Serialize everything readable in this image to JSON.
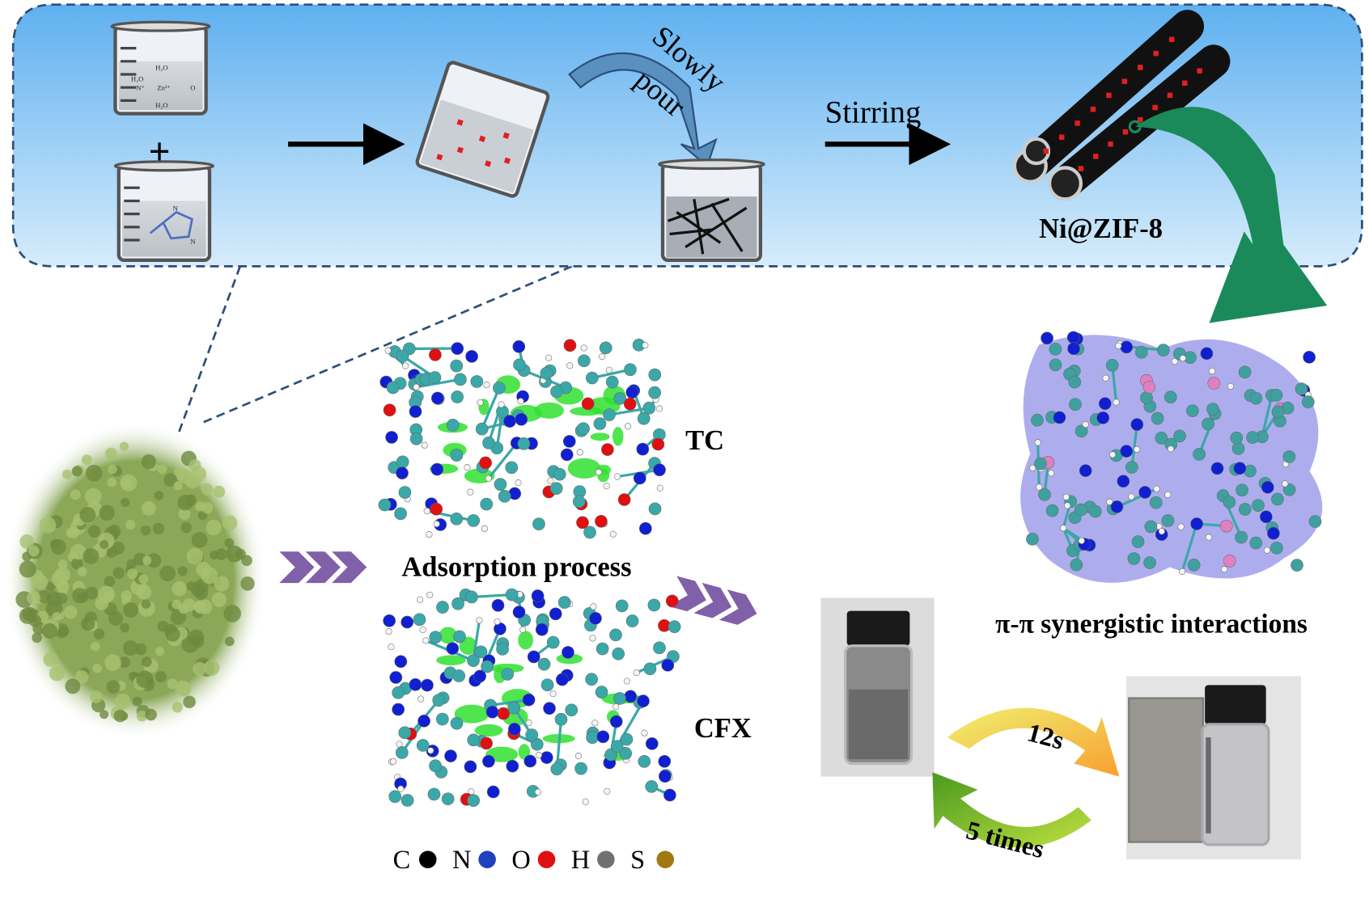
{
  "synthesis": {
    "beaker1_labels": {
      "water": "H₂O",
      "zinc": "Zn²⁺",
      "nitrate_n": "N⁺",
      "nitrate_o": "O"
    },
    "beaker2_labels": {
      "n_top": "N",
      "n_bottom": "N"
    },
    "pour_label_1": "Slowly",
    "pour_label_2": "pour",
    "stirring_label": "Stirring",
    "product_label": "Ni@ZIF-8"
  },
  "adsorption": {
    "process_label": "Adsorption process",
    "tc_label": "TC",
    "cfx_label": "CFX"
  },
  "interaction_label": "π-π synergistic interactions",
  "recycle": {
    "time_label": "12s",
    "cycles_label": "5 times"
  },
  "legend": [
    {
      "element": "C",
      "color": "#000000"
    },
    {
      "element": "N",
      "color": "#2040c0"
    },
    {
      "element": "O",
      "color": "#e01010"
    },
    {
      "element": "H",
      "color": "#707070"
    },
    {
      "element": "S",
      "color": "#a07a10"
    }
  ],
  "colors": {
    "panel_top": "#5fb0f0",
    "panel_bottom": "#d6ecfb",
    "panel_border": "#2c4f78",
    "arrow_green": "#1a8a5a",
    "chevron_purple": "#8060a8",
    "sem_green": "#8aa858",
    "carbon_cyan": "#3aa8a8",
    "nitrogen_blue": "#1020d0",
    "isosurface_purple": "#6a6ae0"
  }
}
